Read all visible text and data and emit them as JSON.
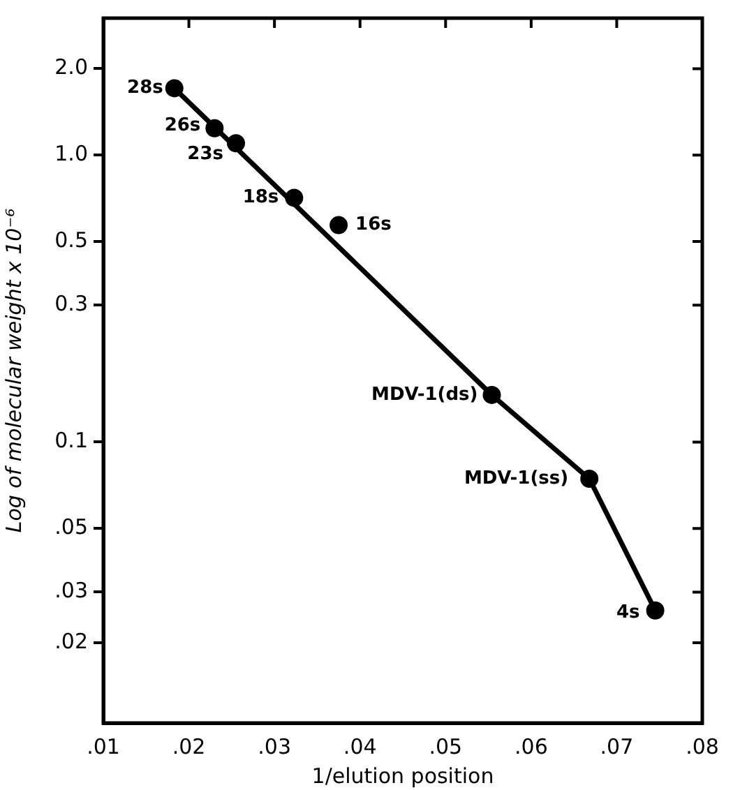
{
  "chart_data": {
    "type": "scatter",
    "xlabel": "1/elution position",
    "ylabel": "Log of molecular weight x 10⁻⁶",
    "log": "y",
    "marker": "circle",
    "grid": false,
    "legend": false,
    "series": [
      {
        "color": "#000000",
        "x": [
          0.0183,
          0.023,
          0.0255,
          0.0323,
          0.0375,
          0.0554,
          0.0668,
          0.0745
        ],
        "values": [
          1.71,
          1.24,
          1.1,
          0.71,
          0.57,
          0.146,
          0.0745,
          0.0259
        ]
      },
      {
        "type": "line",
        "marker": "none",
        "color": "#000000",
        "x": [
          0.0183,
          0.0554,
          0.0668,
          0.0745
        ],
        "values": [
          1.71,
          0.146,
          0.0745,
          0.0259
        ]
      }
    ],
    "xlim": [
      0.01,
      0.08
    ],
    "xticks": [
      {
        "value": 0.01,
        "label": ".01"
      },
      {
        "value": 0.02,
        "label": ".02"
      },
      {
        "value": 0.03,
        "label": ".03"
      },
      {
        "value": 0.04,
        "label": ".04"
      },
      {
        "value": 0.05,
        "label": ".05"
      },
      {
        "value": 0.06,
        "label": ".06"
      },
      {
        "value": 0.07,
        "label": ".07"
      },
      {
        "value": 0.08,
        "label": ".08"
      }
    ],
    "ylim": [
      0.0105,
      3
    ],
    "yticks": [
      {
        "value": 0.02,
        "label": ".02"
      },
      {
        "value": 0.03,
        "label": ".03"
      },
      {
        "value": 0.05,
        "label": ".05"
      },
      {
        "value": 0.1,
        "label": "0.1"
      },
      {
        "value": 0.3,
        "label": "0.3"
      },
      {
        "value": 0.5,
        "label": "0.5"
      },
      {
        "value": 1,
        "label": "1.0"
      },
      {
        "value": 2,
        "label": "2.0"
      }
    ],
    "annotations": [
      {
        "text": "28s",
        "x": 0.0183,
        "y": 1.71
      },
      {
        "text": "26s",
        "x": 0.023,
        "y": 1.24
      },
      {
        "text": "23s",
        "x": 0.0255,
        "y": 1.1
      },
      {
        "text": "18s",
        "x": 0.0323,
        "y": 0.71
      },
      {
        "text": "16s",
        "x": 0.0375,
        "y": 0.57
      },
      {
        "text": "MDV-1(ds)",
        "x": 0.0554,
        "y": 0.146
      },
      {
        "text": "MDV-1(ss)",
        "x": 0.0668,
        "y": 0.0745
      },
      {
        "text": "4s",
        "x": 0.0745,
        "y": 0.0259
      }
    ]
  }
}
